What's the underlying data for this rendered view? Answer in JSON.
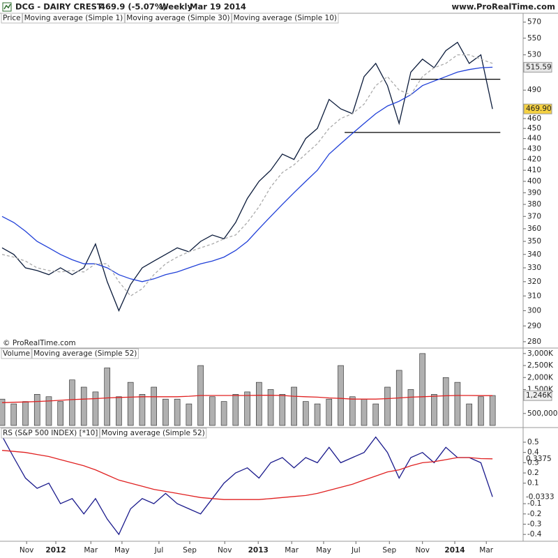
{
  "header": {
    "title": "DCG - DAIRY CREST",
    "last": "469.9 (-5.07%)",
    "period": "Weekly",
    "date": "Mar 19 2014",
    "site": "www.ProRealTime.com",
    "copyright": "© ProRealTime.com"
  },
  "chart_data": [
    {
      "type": "line",
      "label": "Price",
      "log": true,
      "x": [
        0,
        3,
        6,
        9,
        12,
        15,
        18,
        21,
        24,
        27,
        30,
        33,
        36,
        39,
        42,
        45,
        48,
        51,
        54,
        57,
        60,
        63,
        66,
        69,
        72,
        75,
        78,
        81,
        84,
        87,
        90,
        93,
        96,
        99,
        102,
        105,
        108,
        111,
        114,
        117,
        120,
        123,
        126
      ],
      "xlim": [
        -0.54,
        133.5
      ],
      "ylim": [
        276.5,
        576
      ],
      "yticks": [
        280,
        290,
        300,
        310,
        320,
        330,
        340,
        350,
        360,
        370,
        380,
        390,
        400,
        410,
        420,
        430,
        440,
        450,
        460,
        490,
        530,
        550,
        570
      ],
      "series": [
        {
          "name": "Moving average (Simple 1)",
          "color": "#0a1a3a",
          "label_fill": "#f5d142",
          "last_label": "469.90",
          "values": [
            345,
            340,
            330,
            328,
            325,
            330,
            325,
            330,
            348,
            320,
            300,
            318,
            330,
            335,
            340,
            345,
            342,
            350,
            355,
            352,
            365,
            385,
            400,
            410,
            425,
            420,
            440,
            450,
            480,
            470,
            465,
            505,
            520,
            495,
            455,
            510,
            525,
            515,
            535,
            545,
            520,
            530,
            469.9
          ]
        },
        {
          "name": "Moving average (Simple 30)",
          "color": "#1f3fd8",
          "label_fill": "#e8e8e8",
          "last_label": "515.59",
          "values": [
            370,
            365,
            358,
            350,
            345,
            340,
            336,
            333,
            333,
            330,
            325,
            322,
            320,
            322,
            325,
            327,
            330,
            333,
            335,
            338,
            343,
            350,
            360,
            370,
            380,
            390,
            400,
            410,
            425,
            435,
            445,
            455,
            465,
            473,
            478,
            485,
            495,
            500,
            505,
            510,
            513,
            515,
            515.59
          ]
        },
        {
          "name": "Moving average (Simple 10)",
          "color": "#aaaaaa",
          "dash": true,
          "values": [
            340,
            338,
            335,
            330,
            328,
            327,
            328,
            327,
            333,
            333,
            320,
            310,
            315,
            325,
            333,
            338,
            342,
            345,
            348,
            352,
            355,
            365,
            378,
            395,
            408,
            415,
            425,
            435,
            450,
            460,
            465,
            475,
            495,
            505,
            490,
            485,
            505,
            515,
            520,
            530,
            530,
            525,
            520
          ]
        }
      ],
      "hlines": [
        {
          "y": 502,
          "x": [
            105,
            128
          ]
        },
        {
          "y": 446,
          "x": [
            88,
            128
          ]
        }
      ]
    },
    {
      "type": "bar",
      "x": [
        0,
        3,
        6,
        9,
        12,
        15,
        18,
        21,
        24,
        27,
        30,
        33,
        36,
        39,
        42,
        45,
        48,
        51,
        54,
        57,
        60,
        63,
        66,
        69,
        72,
        75,
        78,
        81,
        84,
        87,
        90,
        93,
        96,
        99,
        102,
        105,
        108,
        111,
        114,
        117,
        120,
        123,
        126
      ],
      "xlim": [
        -0.54,
        133.5
      ],
      "ylim": [
        0,
        3200000
      ],
      "yticks": [
        {
          "value": 500000,
          "label": "500,000"
        },
        {
          "value": 1500000,
          "label": "1,500K"
        },
        {
          "value": 2000000,
          "label": "2,000K"
        },
        {
          "value": 2500000,
          "label": "2,500K"
        },
        {
          "value": 3000000,
          "label": "3,000K"
        }
      ],
      "series": [
        {
          "name": "Volume",
          "color": "#b0b0b0",
          "values": [
            1100000,
            900000,
            1000000,
            1300000,
            1200000,
            1000000,
            1900000,
            1600000,
            1400000,
            2400000,
            1200000,
            1800000,
            1300000,
            1600000,
            1100000,
            1100000,
            900000,
            2500000,
            1200000,
            1000000,
            1300000,
            1400000,
            1800000,
            1500000,
            1300000,
            1600000,
            1000000,
            900000,
            1100000,
            2500000,
            1200000,
            1100000,
            900000,
            1600000,
            2300000,
            1500000,
            3000000,
            1300000,
            2000000,
            1800000,
            900000,
            1200000,
            1250000
          ]
        },
        {
          "name": "Moving average (Simple 52)",
          "type": "line",
          "color": "#e02020",
          "label_fill": "#eeeeee",
          "last_label": "1,246K",
          "values": [
            950000,
            970000,
            980000,
            1000000,
            1020000,
            1050000,
            1080000,
            1100000,
            1120000,
            1150000,
            1170000,
            1180000,
            1200000,
            1200000,
            1200000,
            1200000,
            1220000,
            1250000,
            1250000,
            1250000,
            1250000,
            1250000,
            1260000,
            1260000,
            1250000,
            1220000,
            1200000,
            1180000,
            1150000,
            1130000,
            1100000,
            1100000,
            1100000,
            1120000,
            1150000,
            1180000,
            1200000,
            1220000,
            1240000,
            1250000,
            1250000,
            1246000,
            1246000
          ]
        }
      ]
    },
    {
      "type": "line",
      "x": [
        0,
        3,
        6,
        9,
        12,
        15,
        18,
        21,
        24,
        27,
        30,
        33,
        36,
        39,
        42,
        45,
        48,
        51,
        54,
        57,
        60,
        63,
        66,
        69,
        72,
        75,
        78,
        81,
        84,
        87,
        90,
        93,
        96,
        99,
        102,
        105,
        108,
        111,
        114,
        117,
        120,
        123,
        126
      ],
      "xlim": [
        -0.54,
        133.5
      ],
      "ylim": [
        -0.46,
        0.636
      ],
      "yticks": [
        -0.4,
        -0.3,
        -0.2,
        -0.1,
        0.1,
        0.2,
        0.3,
        0.4,
        0.5
      ],
      "xticks": [
        {
          "value": 6.3,
          "label": "Nov"
        },
        {
          "value": 13.8,
          "label": "2012"
        },
        {
          "value": 22.8,
          "label": "Mar"
        },
        {
          "value": 30.8,
          "label": "May"
        },
        {
          "value": 40.3,
          "label": "Jul"
        },
        {
          "value": 48.2,
          "label": "Sep"
        },
        {
          "value": 57.2,
          "label": "Nov"
        },
        {
          "value": 65.8,
          "label": "2013"
        },
        {
          "value": 74.4,
          "label": "Mar"
        },
        {
          "value": 82.6,
          "label": "May"
        },
        {
          "value": 90.9,
          "label": "Jul"
        },
        {
          "value": 99.5,
          "label": "Sep"
        },
        {
          "value": 108,
          "label": "Nov"
        },
        {
          "value": 116.3,
          "label": "2014"
        },
        {
          "value": 124.4,
          "label": "Mar"
        }
      ],
      "series": [
        {
          "name": "RS (S&P 500 INDEX) [*10]",
          "color": "#1a1a8c",
          "last_label": "-0.0333",
          "values": [
            0.56,
            0.35,
            0.15,
            0.05,
            0.1,
            -0.1,
            -0.05,
            -0.2,
            -0.05,
            -0.25,
            -0.4,
            -0.15,
            -0.05,
            -0.1,
            0.0,
            -0.1,
            -0.15,
            -0.2,
            -0.05,
            0.1,
            0.2,
            0.25,
            0.15,
            0.3,
            0.35,
            0.25,
            0.35,
            0.3,
            0.45,
            0.3,
            0.35,
            0.4,
            0.55,
            0.4,
            0.15,
            0.35,
            0.4,
            0.3,
            0.45,
            0.35,
            0.35,
            0.3,
            -0.0333
          ]
        },
        {
          "name": "Moving average (Simple 52)",
          "color": "#e02020",
          "last_label": "0.3375",
          "values": [
            0.42,
            0.41,
            0.4,
            0.38,
            0.36,
            0.33,
            0.3,
            0.27,
            0.23,
            0.18,
            0.13,
            0.1,
            0.07,
            0.04,
            0.02,
            0.0,
            -0.02,
            -0.04,
            -0.05,
            -0.06,
            -0.06,
            -0.06,
            -0.06,
            -0.05,
            -0.04,
            -0.03,
            -0.02,
            0.0,
            0.03,
            0.06,
            0.09,
            0.13,
            0.17,
            0.21,
            0.23,
            0.27,
            0.3,
            0.31,
            0.33,
            0.35,
            0.35,
            0.34,
            0.3375
          ]
        }
      ]
    }
  ]
}
